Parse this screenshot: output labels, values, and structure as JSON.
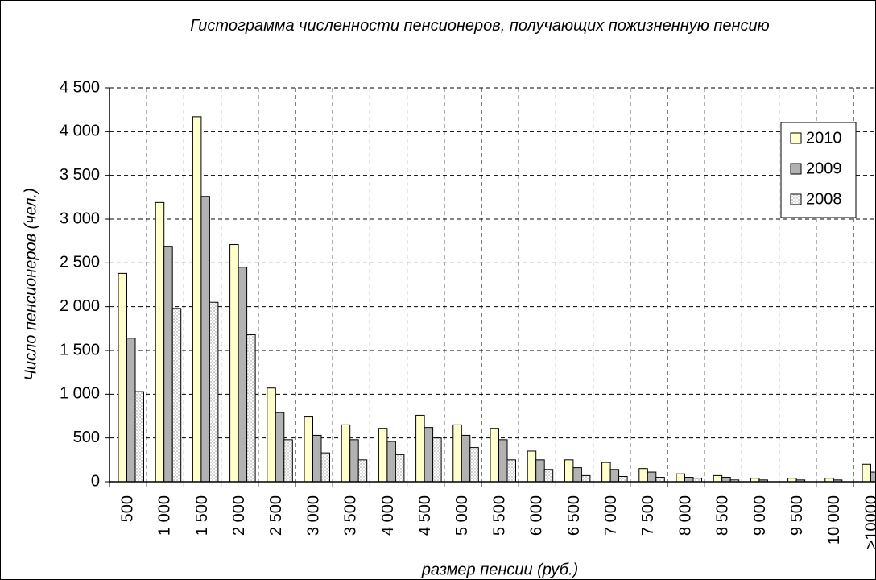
{
  "chart_data": {
    "type": "bar",
    "title": "Гистограмма численности пенсионеров, получающих  пожизненную пенсию",
    "x_label": "размер пенсии (руб.)",
    "y_label": "Число пенсионеров (чел.)",
    "categories": [
      "500",
      "1 000",
      "1 500",
      "2 000",
      "2 500",
      "3 000",
      "3 500",
      "4 000",
      "4 500",
      "5 000",
      "5 500",
      "6 000",
      "6 500",
      "7 000",
      "7 500",
      "8 000",
      "8 500",
      "9 000",
      "9 500",
      "10 000",
      ">10000"
    ],
    "series": [
      {
        "name": "2010",
        "color": "#ffffcc",
        "values": [
          2380,
          3190,
          4170,
          2710,
          1070,
          740,
          650,
          610,
          760,
          650,
          610,
          350,
          250,
          220,
          150,
          90,
          70,
          40,
          40,
          40,
          200
        ]
      },
      {
        "name": "2009",
        "color": "#b2b2b2",
        "values": [
          1640,
          2690,
          3260,
          2450,
          790,
          530,
          480,
          460,
          620,
          530,
          480,
          250,
          160,
          140,
          110,
          50,
          50,
          20,
          20,
          20,
          110
        ]
      },
      {
        "name": "2008",
        "color": "#d4d4d4",
        "pattern": "checker",
        "values": [
          1030,
          1980,
          2050,
          1680,
          480,
          330,
          250,
          310,
          500,
          390,
          250,
          140,
          70,
          60,
          50,
          40,
          20,
          0,
          0,
          0,
          60
        ]
      }
    ],
    "ylim": [
      0,
      4500
    ],
    "yticks": [
      0,
      500,
      {
        "value": 1000,
        "label": "1 000"
      },
      {
        "value": 1500,
        "label": "1 500"
      },
      {
        "value": 2000,
        "label": "2 000"
      },
      {
        "value": 2500,
        "label": "2 500"
      },
      {
        "value": 3000,
        "label": "3 000"
      },
      {
        "value": 3500,
        "label": "3 500"
      },
      {
        "value": 4000,
        "label": "4 000"
      },
      {
        "value": 4500,
        "label": "4 500"
      }
    ],
    "grid": true,
    "grid_style": "dashed",
    "legend": "upper right"
  }
}
